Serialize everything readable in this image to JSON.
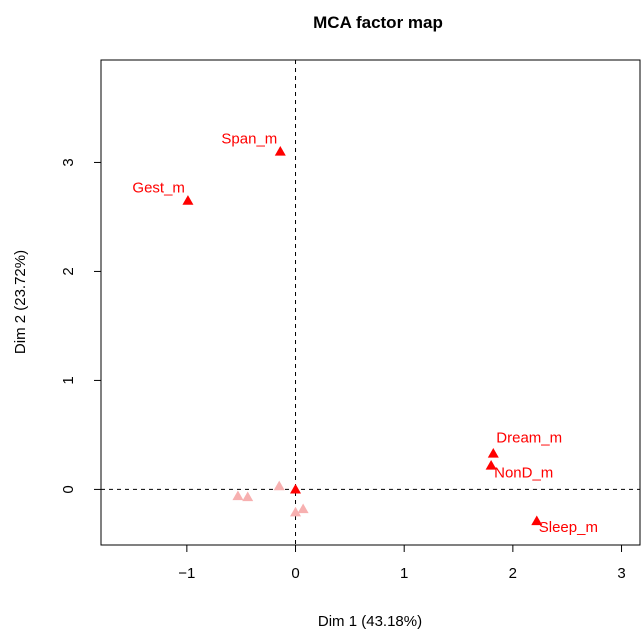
{
  "chart_data": {
    "type": "scatter",
    "title": "MCA factor map",
    "xlabel": "Dim 1 (43.18%)",
    "ylabel": "Dim 2 (23.72%)",
    "x": [
      -0.14,
      -0.99,
      1.82,
      1.8,
      2.22,
      0.0,
      -0.53,
      -0.44,
      -0.15,
      0.0,
      0.07
    ],
    "values": [
      3.1,
      2.65,
      0.33,
      0.22,
      -0.29,
      0.0,
      -0.06,
      -0.07,
      0.03,
      -0.21,
      -0.18
    ],
    "labels": [
      "Span_m",
      "Gest_m",
      "Dream_m",
      "NonD_m",
      "Sleep_m",
      null,
      null,
      null,
      null,
      null,
      null
    ],
    "colors": [
      "#ff0000",
      "#ff0000",
      "#ff0000",
      "#ff0000",
      "#ff0000",
      "#ff0000",
      "#f7b0b0",
      "#f7b0b0",
      "#f7b0b0",
      "#f7b0b0",
      "#f7b0b0"
    ],
    "xlim": [
      -1.79,
      3.17
    ],
    "ylim": [
      -0.51,
      3.94
    ],
    "xticks": [
      {
        "value": -1,
        "label": "−1"
      },
      0,
      1,
      2,
      3
    ],
    "yticks": [
      0,
      1,
      2,
      3
    ]
  }
}
